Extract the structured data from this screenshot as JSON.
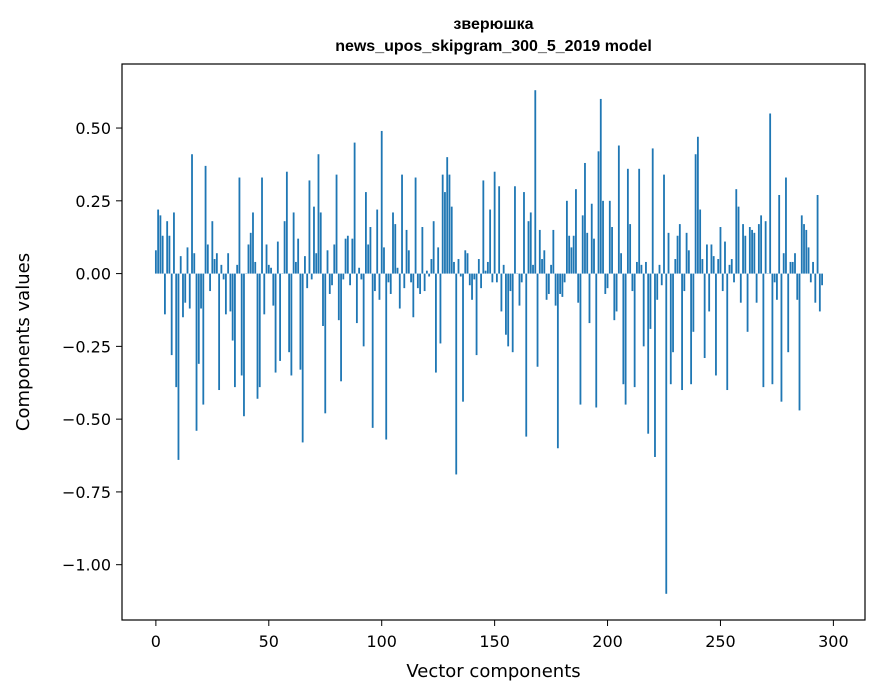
{
  "chart_data": {
    "type": "bar",
    "title": "зверюшка",
    "subtitle": "news_upos_skipgram_300_5_2019 model",
    "xlabel": "Vector components",
    "ylabel": "Components values",
    "xlim": [
      -15,
      314
    ],
    "ylim": [
      -1.19,
      0.72
    ],
    "xticks": [
      0,
      50,
      100,
      150,
      200,
      250,
      300
    ],
    "xtick_labels": [
      "0",
      "50",
      "100",
      "150",
      "200",
      "250",
      "300"
    ],
    "yticks": [
      -1.0,
      -0.75,
      -0.5,
      -0.25,
      0.0,
      0.25,
      0.5
    ],
    "ytick_labels": [
      "−1.00",
      "−0.75",
      "−0.50",
      "−0.25",
      "0.00",
      "0.25",
      "0.50"
    ],
    "bar_color": "#1f77b4",
    "grid": false,
    "values": [
      0.08,
      0.22,
      0.2,
      0.13,
      -0.14,
      0.18,
      0.13,
      -0.28,
      0.21,
      -0.39,
      -0.64,
      0.06,
      -0.15,
      -0.1,
      0.09,
      -0.12,
      0.41,
      0.07,
      -0.54,
      -0.31,
      -0.12,
      -0.45,
      0.37,
      0.1,
      -0.06,
      0.18,
      0.05,
      0.07,
      -0.4,
      0.03,
      -0.02,
      -0.14,
      0.07,
      -0.13,
      -0.23,
      -0.39,
      0.03,
      0.33,
      -0.35,
      -0.49,
      0.0,
      0.1,
      0.14,
      0.21,
      0.04,
      -0.43,
      -0.39,
      0.33,
      -0.14,
      0.1,
      0.03,
      0.02,
      -0.11,
      -0.34,
      0.11,
      -0.3,
      0.0,
      0.18,
      0.35,
      -0.27,
      -0.35,
      0.21,
      0.04,
      0.12,
      -0.33,
      -0.58,
      0.06,
      -0.05,
      0.32,
      -0.02,
      0.23,
      0.07,
      0.41,
      0.21,
      -0.18,
      -0.48,
      0.08,
      -0.07,
      -0.04,
      0.1,
      0.34,
      -0.16,
      -0.37,
      -0.02,
      0.12,
      0.13,
      -0.04,
      0.12,
      0.45,
      -0.17,
      0.02,
      -0.02,
      -0.25,
      0.28,
      0.1,
      0.16,
      -0.53,
      -0.06,
      0.22,
      -0.09,
      0.49,
      0.09,
      -0.57,
      -0.03,
      -0.07,
      0.21,
      0.17,
      0.02,
      -0.12,
      0.34,
      -0.05,
      0.15,
      0.08,
      -0.03,
      -0.15,
      0.33,
      -0.05,
      -0.07,
      0.16,
      -0.06,
      0.01,
      -0.01,
      0.05,
      0.18,
      -0.34,
      0.09,
      -0.24,
      0.34,
      0.28,
      0.4,
      0.34,
      0.23,
      0.04,
      -0.69,
      0.05,
      -0.01,
      -0.44,
      0.08,
      0.07,
      -0.04,
      -0.09,
      -0.02,
      -0.28,
      0.05,
      -0.05,
      0.32,
      0.01,
      0.04,
      0.22,
      -0.03,
      0.35,
      -0.03,
      0.3,
      -0.13,
      0.03,
      -0.21,
      -0.25,
      -0.06,
      -0.27,
      0.3,
      0.0,
      -0.11,
      -0.03,
      0.28,
      -0.56,
      0.18,
      0.21,
      0.03,
      0.63,
      -0.32,
      0.15,
      0.05,
      0.08,
      -0.09,
      -0.07,
      0.03,
      0.15,
      -0.11,
      -0.6,
      -0.07,
      -0.08,
      -0.03,
      0.25,
      0.13,
      0.09,
      0.13,
      0.29,
      -0.1,
      -0.45,
      0.2,
      0.38,
      0.14,
      -0.17,
      0.24,
      0.12,
      -0.46,
      0.42,
      0.6,
      0.25,
      -0.07,
      -0.05,
      0.25,
      0.16,
      -0.16,
      -0.13,
      0.44,
      0.07,
      -0.38,
      -0.45,
      0.36,
      0.17,
      -0.06,
      -0.39,
      0.04,
      0.36,
      0.03,
      -0.25,
      0.04,
      -0.55,
      -0.19,
      0.43,
      -0.63,
      -0.09,
      0.03,
      -0.04,
      0.34,
      -1.1,
      0.14,
      -0.38,
      -0.27,
      0.05,
      0.13,
      0.17,
      -0.4,
      -0.06,
      0.14,
      0.08,
      -0.38,
      -0.2,
      0.41,
      0.47,
      0.22,
      0.05,
      -0.29,
      0.1,
      -0.13,
      0.1,
      0.06,
      -0.35,
      0.05,
      0.16,
      -0.06,
      0.11,
      -0.4,
      0.03,
      0.05,
      -0.03,
      0.29,
      0.23,
      -0.1,
      0.17,
      0.13,
      -0.2,
      0.16,
      0.15,
      0.14,
      -0.1,
      0.17,
      0.2,
      -0.39,
      0.18,
      0.0,
      0.55,
      -0.38,
      -0.03,
      -0.09,
      0.27,
      -0.44,
      0.07,
      0.33,
      -0.27,
      0.04,
      0.04,
      0.07,
      -0.09,
      -0.47,
      0.2,
      0.17,
      0.15,
      0.09,
      -0.03,
      0.04,
      -0.1,
      0.27,
      -0.13,
      -0.04
    ]
  }
}
